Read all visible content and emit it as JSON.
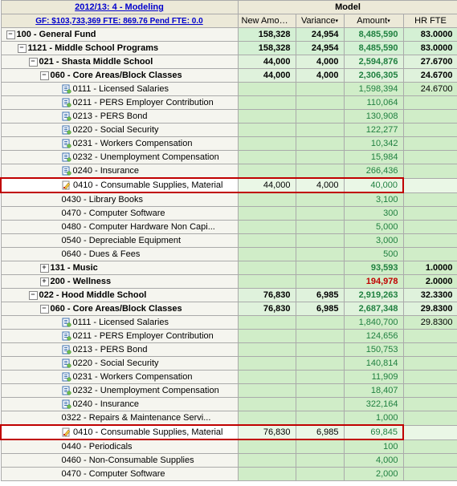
{
  "header": {
    "title_link": "2012/13: 4 - Modeling",
    "sub_link": "GF: $103,733,369  FTE: 869.76  Pend FTE: 0.0",
    "model_group": "Model",
    "cols": [
      "New Amount",
      "Variance",
      "Amount",
      "HR FTE"
    ]
  },
  "highlight_color": "#c00000",
  "rows": [
    {
      "indent": 0,
      "exp": "-",
      "icon": null,
      "label": "100 - General Fund",
      "bold": true,
      "new": "158,328",
      "var": "24,954",
      "amt": "8,485,590",
      "fte": "83.0000",
      "amt_cls": "green-num",
      "row_bg": "rowbg-green0",
      "hl": false
    },
    {
      "indent": 1,
      "exp": "-",
      "icon": null,
      "label": "1121 - Middle School Programs",
      "bold": true,
      "new": "158,328",
      "var": "24,954",
      "amt": "8,485,590",
      "fte": "83.0000",
      "amt_cls": "green-num",
      "row_bg": "rowbg-green0",
      "hl": false
    },
    {
      "indent": 2,
      "exp": "-",
      "icon": null,
      "label": "021 - Shasta Middle School",
      "bold": true,
      "new": "44,000",
      "var": "4,000",
      "amt": "2,594,876",
      "fte": "27.6700",
      "amt_cls": "green-num",
      "row_bg": "rowbg-green2",
      "hl": false
    },
    {
      "indent": 3,
      "exp": "-",
      "icon": null,
      "label": "060 - Core Areas/Block Classes",
      "bold": true,
      "new": "44,000",
      "var": "4,000",
      "amt": "2,306,305",
      "fte": "24.6700",
      "amt_cls": "green-num",
      "row_bg": "rowbg-green2",
      "hl": false
    },
    {
      "indent": 4,
      "exp": null,
      "icon": "doc",
      "label": "0111 -  Licensed Salaries",
      "bold": false,
      "new": "",
      "var": "",
      "amt": "1,598,394",
      "fte": "24.6700",
      "amt_cls": "green-num",
      "row_bg": "rowbg-green3",
      "hl": false
    },
    {
      "indent": 4,
      "exp": null,
      "icon": "doc",
      "label": "0211 -  PERS Employer Contribution",
      "bold": false,
      "new": "",
      "var": "",
      "amt": "110,064",
      "fte": "",
      "amt_cls": "green-num",
      "row_bg": "rowbg-green3",
      "hl": false
    },
    {
      "indent": 4,
      "exp": null,
      "icon": "doc",
      "label": "0213 -  PERS Bond",
      "bold": false,
      "new": "",
      "var": "",
      "amt": "130,908",
      "fte": "",
      "amt_cls": "green-num",
      "row_bg": "rowbg-green3",
      "hl": false
    },
    {
      "indent": 4,
      "exp": null,
      "icon": "doc",
      "label": "0220 -  Social Security",
      "bold": false,
      "new": "",
      "var": "",
      "amt": "122,277",
      "fte": "",
      "amt_cls": "green-num",
      "row_bg": "rowbg-green3",
      "hl": false
    },
    {
      "indent": 4,
      "exp": null,
      "icon": "doc",
      "label": "0231 -  Workers Compensation",
      "bold": false,
      "new": "",
      "var": "",
      "amt": "10,342",
      "fte": "",
      "amt_cls": "green-num",
      "row_bg": "rowbg-green3",
      "hl": false
    },
    {
      "indent": 4,
      "exp": null,
      "icon": "doc",
      "label": "0232 -  Unemployment Compensation",
      "bold": false,
      "new": "",
      "var": "",
      "amt": "15,984",
      "fte": "",
      "amt_cls": "green-num",
      "row_bg": "rowbg-green3",
      "hl": false
    },
    {
      "indent": 4,
      "exp": null,
      "icon": "doc",
      "label": "0240 -  Insurance",
      "bold": false,
      "new": "",
      "var": "",
      "amt": "266,436",
      "fte": "",
      "amt_cls": "green-num",
      "row_bg": "rowbg-green3",
      "hl": false
    },
    {
      "indent": 4,
      "exp": null,
      "icon": "edit",
      "label": "0410 -  Consumable Supplies, Material",
      "bold": false,
      "new": "44,000",
      "var": "4,000",
      "amt": "40,000",
      "fte": "",
      "amt_cls": "green-num",
      "row_bg": "rowbg-green1",
      "hl": true
    },
    {
      "indent": 4,
      "exp": null,
      "icon": null,
      "label": "0430 -  Library Books",
      "bold": false,
      "new": "",
      "var": "",
      "amt": "3,100",
      "fte": "",
      "amt_cls": "green-num",
      "row_bg": "rowbg-green3",
      "hl": false
    },
    {
      "indent": 4,
      "exp": null,
      "icon": null,
      "label": "0470 -  Computer Software",
      "bold": false,
      "new": "",
      "var": "",
      "amt": "300",
      "fte": "",
      "amt_cls": "green-num",
      "row_bg": "rowbg-green3",
      "hl": false
    },
    {
      "indent": 4,
      "exp": null,
      "icon": null,
      "label": "0480 -  Computer Hardware Non Capi...",
      "bold": false,
      "new": "",
      "var": "",
      "amt": "5,000",
      "fte": "",
      "amt_cls": "green-num",
      "row_bg": "rowbg-green3",
      "hl": false
    },
    {
      "indent": 4,
      "exp": null,
      "icon": null,
      "label": "0540 -  Depreciable Equipment",
      "bold": false,
      "new": "",
      "var": "",
      "amt": "3,000",
      "fte": "",
      "amt_cls": "green-num",
      "row_bg": "rowbg-green3",
      "hl": false
    },
    {
      "indent": 4,
      "exp": null,
      "icon": null,
      "label": "0640 -  Dues & Fees",
      "bold": false,
      "new": "",
      "var": "",
      "amt": "500",
      "fte": "",
      "amt_cls": "green-num",
      "row_bg": "rowbg-green3",
      "hl": false
    },
    {
      "indent": 3,
      "exp": "+",
      "icon": null,
      "label": "131 - Music",
      "bold": true,
      "new": "",
      "var": "",
      "amt": "93,593",
      "fte": "1.0000",
      "amt_cls": "green-num",
      "row_bg": "rowbg-green3",
      "hl": false
    },
    {
      "indent": 3,
      "exp": "+",
      "icon": null,
      "label": "200 - Wellness",
      "bold": true,
      "new": "",
      "var": "",
      "amt": "194,978",
      "fte": "2.0000",
      "amt_cls": "red-num",
      "row_bg": "rowbg-green3",
      "hl": false
    },
    {
      "indent": 2,
      "exp": "-",
      "icon": null,
      "label": "022 - Hood Middle School",
      "bold": true,
      "new": "76,830",
      "var": "6,985",
      "amt": "2,919,263",
      "fte": "32.3300",
      "amt_cls": "green-num",
      "row_bg": "rowbg-green2",
      "hl": false
    },
    {
      "indent": 3,
      "exp": "-",
      "icon": null,
      "label": "060 - Core Areas/Block Classes",
      "bold": true,
      "new": "76,830",
      "var": "6,985",
      "amt": "2,687,348",
      "fte": "29.8300",
      "amt_cls": "green-num",
      "row_bg": "rowbg-green2",
      "hl": false
    },
    {
      "indent": 4,
      "exp": null,
      "icon": "doc",
      "label": "0111 -  Licensed Salaries",
      "bold": false,
      "new": "",
      "var": "",
      "amt": "1,840,700",
      "fte": "29.8300",
      "amt_cls": "green-num",
      "row_bg": "rowbg-green3",
      "hl": false
    },
    {
      "indent": 4,
      "exp": null,
      "icon": "doc",
      "label": "0211 -  PERS Employer Contribution",
      "bold": false,
      "new": "",
      "var": "",
      "amt": "124,656",
      "fte": "",
      "amt_cls": "green-num",
      "row_bg": "rowbg-green3",
      "hl": false
    },
    {
      "indent": 4,
      "exp": null,
      "icon": "doc",
      "label": "0213 -  PERS Bond",
      "bold": false,
      "new": "",
      "var": "",
      "amt": "150,753",
      "fte": "",
      "amt_cls": "green-num",
      "row_bg": "rowbg-green3",
      "hl": false
    },
    {
      "indent": 4,
      "exp": null,
      "icon": "doc",
      "label": "0220 -  Social Security",
      "bold": false,
      "new": "",
      "var": "",
      "amt": "140,814",
      "fte": "",
      "amt_cls": "green-num",
      "row_bg": "rowbg-green3",
      "hl": false
    },
    {
      "indent": 4,
      "exp": null,
      "icon": "doc",
      "label": "0231 -  Workers Compensation",
      "bold": false,
      "new": "",
      "var": "",
      "amt": "11,909",
      "fte": "",
      "amt_cls": "green-num",
      "row_bg": "rowbg-green3",
      "hl": false
    },
    {
      "indent": 4,
      "exp": null,
      "icon": "doc",
      "label": "0232 -  Unemployment Compensation",
      "bold": false,
      "new": "",
      "var": "",
      "amt": "18,407",
      "fte": "",
      "amt_cls": "green-num",
      "row_bg": "rowbg-green3",
      "hl": false
    },
    {
      "indent": 4,
      "exp": null,
      "icon": "doc",
      "label": "0240 -  Insurance",
      "bold": false,
      "new": "",
      "var": "",
      "amt": "322,164",
      "fte": "",
      "amt_cls": "green-num",
      "row_bg": "rowbg-green3",
      "hl": false
    },
    {
      "indent": 4,
      "exp": null,
      "icon": null,
      "label": "0322 -  Repairs & Maintenance Servi...",
      "bold": false,
      "new": "",
      "var": "",
      "amt": "1,000",
      "fte": "",
      "amt_cls": "green-num",
      "row_bg": "rowbg-green3",
      "hl": false
    },
    {
      "indent": 4,
      "exp": null,
      "icon": "edit",
      "label": "0410 -  Consumable Supplies, Material",
      "bold": false,
      "new": "76,830",
      "var": "6,985",
      "amt": "69,845",
      "fte": "",
      "amt_cls": "green-num",
      "row_bg": "rowbg-green1",
      "hl": true
    },
    {
      "indent": 4,
      "exp": null,
      "icon": null,
      "label": "0440 -  Periodicals",
      "bold": false,
      "new": "",
      "var": "",
      "amt": "100",
      "fte": "",
      "amt_cls": "green-num",
      "row_bg": "rowbg-green3",
      "hl": false
    },
    {
      "indent": 4,
      "exp": null,
      "icon": null,
      "label": "0460 -  Non-Consumable Supplies",
      "bold": false,
      "new": "",
      "var": "",
      "amt": "4,000",
      "fte": "",
      "amt_cls": "green-num",
      "row_bg": "rowbg-green3",
      "hl": false
    },
    {
      "indent": 4,
      "exp": null,
      "icon": null,
      "label": "0470 -  Computer Software",
      "bold": false,
      "new": "",
      "var": "",
      "amt": "2,000",
      "fte": "",
      "amt_cls": "green-num",
      "row_bg": "rowbg-green3",
      "hl": false
    }
  ]
}
